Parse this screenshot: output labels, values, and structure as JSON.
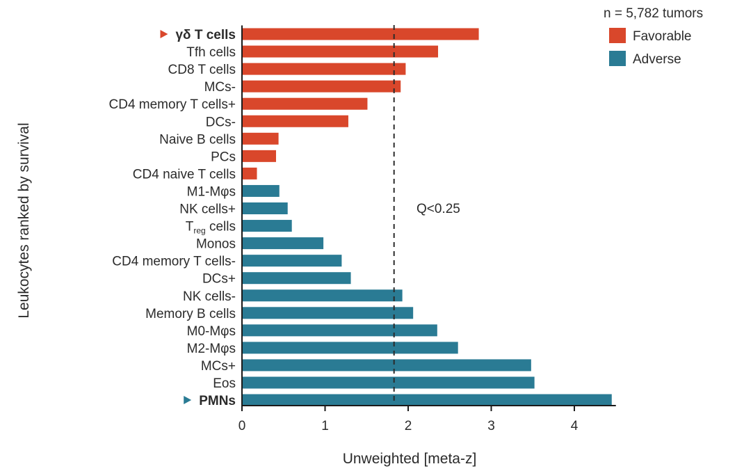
{
  "chart_data": {
    "type": "bar",
    "orientation": "horizontal",
    "xlabel": "Unweighted [meta-z]",
    "ylabel": "Leukocytes ranked by survival",
    "xlim": [
      0,
      4.5
    ],
    "xticks": [
      0,
      1,
      2,
      3,
      4
    ],
    "grid": false,
    "legend": {
      "placement": "top-right",
      "title": "n = 5,782 tumors",
      "entries": [
        {
          "label": "Favorable",
          "color": "#d9472b"
        },
        {
          "label": "Adverse",
          "color": "#2a7b94"
        }
      ]
    },
    "threshold": {
      "x": 1.83,
      "label": "Q<0.25",
      "style": "dashed"
    },
    "colors": {
      "favorable": "#d9472b",
      "adverse": "#2a7b94",
      "axis": "#1a1a1a",
      "text": "#2b2b2b"
    },
    "bars": [
      {
        "label": "γδ T cells",
        "value": 2.85,
        "group": "favorable",
        "highlight": true
      },
      {
        "label": "Tfh cells",
        "value": 2.36,
        "group": "favorable"
      },
      {
        "label": "CD8 T cells",
        "value": 1.97,
        "group": "favorable"
      },
      {
        "label": "MCs-",
        "value": 1.91,
        "group": "favorable"
      },
      {
        "label": "CD4 memory T cells+",
        "value": 1.51,
        "group": "favorable"
      },
      {
        "label": "DCs-",
        "value": 1.28,
        "group": "favorable"
      },
      {
        "label": "Naive B cells",
        "value": 0.44,
        "group": "favorable"
      },
      {
        "label": "PCs",
        "value": 0.41,
        "group": "favorable"
      },
      {
        "label": "CD4 naive T cells",
        "value": 0.18,
        "group": "favorable"
      },
      {
        "label": "M1-Mφs",
        "value": 0.45,
        "group": "adverse"
      },
      {
        "label": "NK cells+",
        "value": 0.55,
        "group": "adverse"
      },
      {
        "label": "T",
        "sub": "reg",
        "tail": " cells",
        "value": 0.6,
        "group": "adverse"
      },
      {
        "label": "Monos",
        "value": 0.98,
        "group": "adverse"
      },
      {
        "label": "CD4 memory T cells-",
        "value": 1.2,
        "group": "adverse"
      },
      {
        "label": "DCs+",
        "value": 1.31,
        "group": "adverse"
      },
      {
        "label": "NK cells-",
        "value": 1.93,
        "group": "adverse"
      },
      {
        "label": "Memory B cells",
        "value": 2.06,
        "group": "adverse"
      },
      {
        "label": "M0-Mφs",
        "value": 2.35,
        "group": "adverse"
      },
      {
        "label": "M2-Mφs",
        "value": 2.6,
        "group": "adverse"
      },
      {
        "label": "MCs+",
        "value": 3.48,
        "group": "adverse"
      },
      {
        "label": "Eos",
        "value": 3.52,
        "group": "adverse"
      },
      {
        "label": "PMNs",
        "value": 4.45,
        "group": "adverse",
        "highlight": true
      }
    ]
  }
}
